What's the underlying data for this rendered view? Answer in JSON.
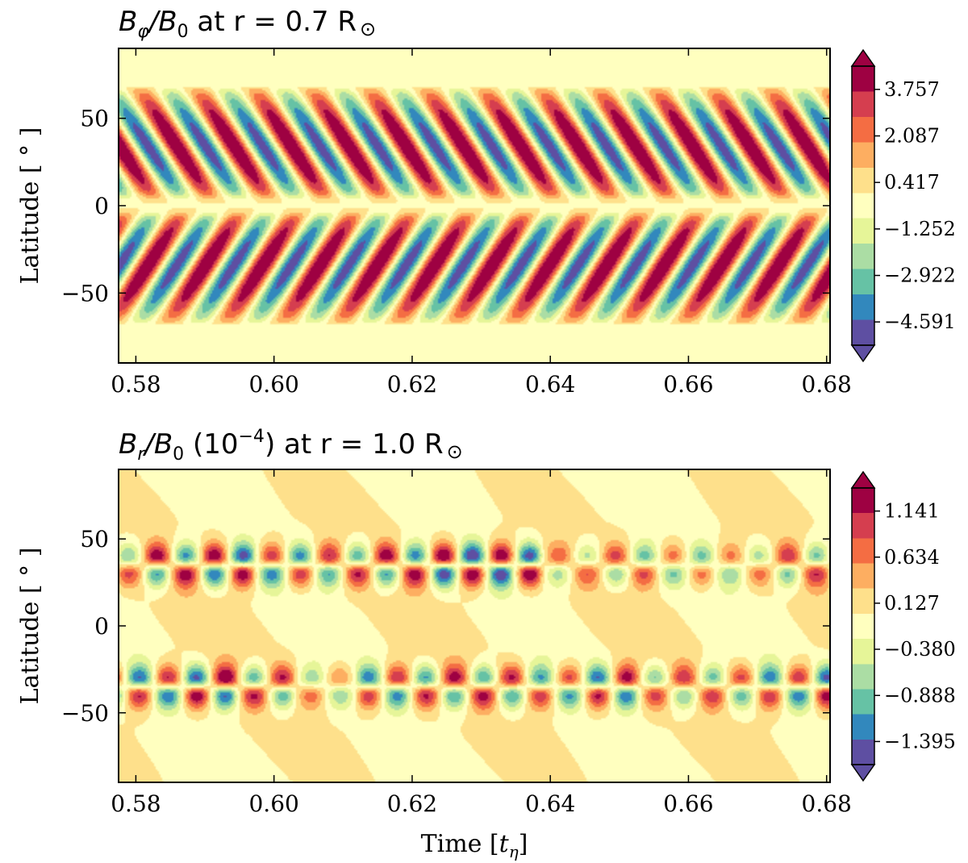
{
  "chart_data": [
    {
      "type": "heatmap",
      "subtype": "filled-contour butterfly diagram",
      "title": "B_φ/B_0 at r = 0.7 R_⊙",
      "title_parts": {
        "lhs": "B",
        "lhs_sub": "φ",
        "mid": "/B",
        "mid_sub": "0",
        "rest": " at r = 0.7 R",
        "sun": "⊙"
      },
      "xlabel": "",
      "ylabel": "Latitude [ ° ]",
      "xlim": [
        0.5775,
        0.6805
      ],
      "ylim": [
        -90,
        90
      ],
      "xticks": [
        "0.58",
        "0.60",
        "0.62",
        "0.64",
        "0.66",
        "0.68"
      ],
      "xtick_values": [
        0.58,
        0.6,
        0.62,
        0.64,
        0.66,
        0.68
      ],
      "yticks": [
        "50",
        "0",
        "−50"
      ],
      "ytick_values": [
        50,
        0,
        -50
      ],
      "colorbar": {
        "range": [
          -5.426,
          4.592
        ],
        "labels": [
          "3.757",
          "2.087",
          "0.417",
          "−1.252",
          "−2.922",
          "−4.591"
        ],
        "label_values": [
          3.757,
          2.087,
          0.417,
          -1.252,
          -2.922,
          -4.591
        ],
        "extend": "both"
      },
      "field_description": "Alternating-sign toroidal field bands in each hemisphere drifting equatorward from ~65° to the equator; cycle period ≈ 0.0083 t_η",
      "period": 0.0083,
      "max_latitude": 68,
      "colormap": [
        "#5e4fa2",
        "#3288bd",
        "#66c2a5",
        "#abdda4",
        "#e6f598",
        "#ffffbf",
        "#fee08b",
        "#fdae61",
        "#f46d43",
        "#d53e4f",
        "#9e0142"
      ]
    },
    {
      "type": "heatmap",
      "subtype": "filled-contour butterfly diagram",
      "title": "B_r/B_0 (10^−4) at r = 1.0 R_⊙",
      "title_parts": {
        "lhs": "B",
        "lhs_sub": "r",
        "mid": "/B",
        "mid_sub": "0",
        "paren_open": " (10",
        "exp": "−4",
        "paren_close": ")",
        "rest": " at r = 1.0 R",
        "sun": "⊙"
      },
      "xlabel": "Time [t_η]",
      "xlabel_parts": {
        "text": "Time [",
        "var": "t",
        "sub": "η",
        "close": "]"
      },
      "ylabel": "Latitude [ ° ]",
      "xlim": [
        0.5775,
        0.6805
      ],
      "ylim": [
        -90,
        90
      ],
      "xticks": [
        "0.58",
        "0.60",
        "0.62",
        "0.64",
        "0.66",
        "0.68"
      ],
      "xtick_values": [
        0.58,
        0.6,
        0.62,
        0.64,
        0.66,
        0.68
      ],
      "yticks": [
        "50",
        "0",
        "−50"
      ],
      "ytick_values": [
        50,
        0,
        -50
      ],
      "colorbar": {
        "range": [
          -1.649,
          1.395
        ],
        "labels": [
          "1.141",
          "0.634",
          "0.127",
          "−0.380",
          "−0.888",
          "−1.395"
        ],
        "label_values": [
          1.141,
          0.634,
          0.127,
          -0.38,
          -0.888,
          -1.395
        ],
        "extend": "both"
      },
      "field_description": "Radial surface field patches in two bands near ±25° to ±45°, alternating polarity in time with opposite sign across each band's center",
      "period": 0.0083,
      "colormap": [
        "#5e4fa2",
        "#3288bd",
        "#66c2a5",
        "#abdda4",
        "#e6f598",
        "#ffffbf",
        "#fee08b",
        "#fdae61",
        "#f46d43",
        "#d53e4f",
        "#9e0142"
      ]
    }
  ]
}
